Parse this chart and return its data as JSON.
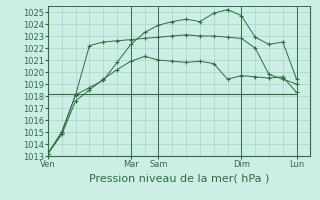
{
  "bg_color": "#cceee5",
  "grid_color": "#aad4ca",
  "line_color": "#2d6e3e",
  "xlabel": "Pression niveau de la mer( hPa )",
  "ylim": [
    1013,
    1025.5
  ],
  "yticks": [
    1013,
    1014,
    1015,
    1016,
    1017,
    1018,
    1019,
    1020,
    1021,
    1022,
    1023,
    1024,
    1025
  ],
  "series1_x": [
    0,
    1,
    2,
    3,
    4,
    5,
    6,
    7,
    8,
    9,
    10,
    11,
    12,
    13,
    14,
    15,
    16,
    17,
    18
  ],
  "series1_y": [
    1013.2,
    1014.8,
    1017.6,
    1018.5,
    1019.4,
    1020.2,
    1020.9,
    1021.3,
    1021.0,
    1020.9,
    1020.8,
    1020.9,
    1020.7,
    1019.4,
    1019.7,
    1019.6,
    1019.5,
    1019.6,
    1018.3
  ],
  "series2_x": [
    0,
    1,
    2,
    3,
    4,
    5,
    6,
    7,
    8,
    9,
    10,
    11,
    12,
    13,
    14,
    15,
    16,
    17,
    18
  ],
  "series2_y": [
    1013.2,
    1015.0,
    1018.1,
    1018.7,
    1019.3,
    1020.8,
    1022.3,
    1023.3,
    1023.9,
    1024.2,
    1024.4,
    1024.2,
    1024.9,
    1025.2,
    1024.7,
    1022.9,
    1022.3,
    1022.5,
    1019.4
  ],
  "series3_x": [
    0,
    1,
    2,
    3,
    4,
    5,
    6,
    7,
    8,
    9,
    10,
    11,
    12,
    13,
    14,
    15,
    16,
    17,
    18
  ],
  "series3_y": [
    1013.2,
    1015.0,
    1018.1,
    1022.2,
    1022.5,
    1022.6,
    1022.7,
    1022.8,
    1022.9,
    1023.0,
    1023.1,
    1023.0,
    1023.0,
    1022.9,
    1022.8,
    1022.0,
    1019.8,
    1019.4,
    1019.0
  ],
  "flat_line_y": 1018.2,
  "flat_line_x_start": 0,
  "flat_line_x_end": 18,
  "divider_x_positions": [
    0,
    6,
    8,
    14,
    18
  ],
  "day_tick_positions": [
    0,
    6,
    8,
    14,
    18
  ],
  "day_tick_labels": [
    "Ven",
    "Mar",
    "Sam",
    "Dim",
    "Lun"
  ],
  "xlabel_fontsize": 8,
  "tick_fontsize": 6,
  "xlim": [
    0,
    19
  ]
}
